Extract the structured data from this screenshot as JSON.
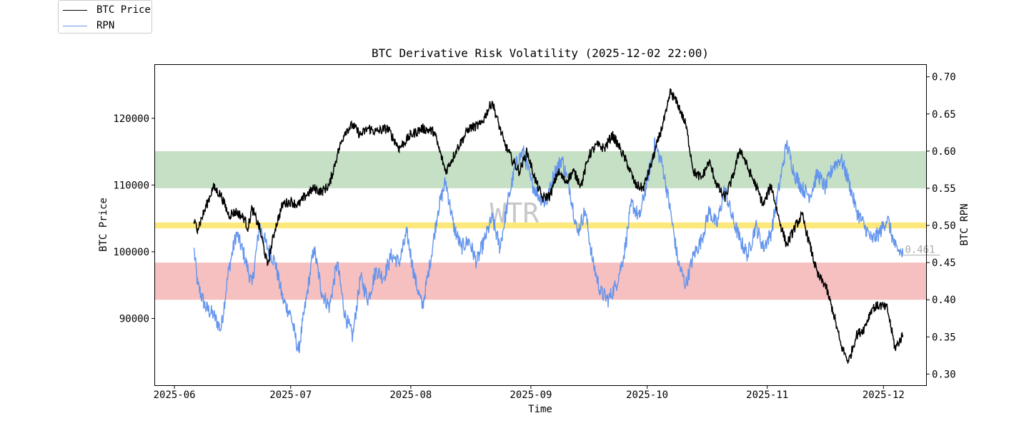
{
  "colors": {
    "btc_line": "#000000",
    "rpn_line": "#6495ed",
    "green_band": "#c6e0c6",
    "yellow_band": "#fde97b",
    "red_band": "#f6bfc0",
    "watermark": "#c8c8c8",
    "last_value": "#aaaaaa"
  },
  "chart_data": {
    "type": "line",
    "title": "BTC Derivative Risk Volatility (2025-12-02 22:00)",
    "xlabel": "Time",
    "ylabel_left": "BTC Price",
    "ylabel_right": "BTC RPN",
    "watermark": "WTR",
    "x_ticks": [
      "2025-06",
      "2025-07",
      "2025-08",
      "2025-09",
      "2025-10",
      "2025-11",
      "2025-12"
    ],
    "y_left_ticks": [
      "90000",
      "100000",
      "110000",
      "120000"
    ],
    "y_right_ticks": [
      "0.30",
      "0.35",
      "0.40",
      "0.45",
      "0.50",
      "0.55",
      "0.60",
      "0.65",
      "0.70"
    ],
    "y_left_range": [
      80000,
      128000
    ],
    "y_right_range": [
      0.285,
      0.716
    ],
    "x_range_days": [
      -5,
      194
    ],
    "bands": [
      {
        "name": "green-band",
        "from": 0.55,
        "to": 0.6
      },
      {
        "name": "yellow-band",
        "from": 0.496,
        "to": 0.504
      },
      {
        "name": "red-band",
        "from": 0.4,
        "to": 0.45
      }
    ],
    "last_rpn_label": "0.461",
    "legend": [
      {
        "label": "BTC Price",
        "series": "btc"
      },
      {
        "label": "RPN",
        "series": "rpn"
      }
    ],
    "series": [
      {
        "name": "BTC Price",
        "key": "btc",
        "axis": "left",
        "days": [
          5,
          6,
          8,
          10,
          12,
          14,
          16,
          18,
          19,
          20,
          22,
          24,
          26,
          28,
          30,
          32,
          34,
          36,
          38,
          40,
          42,
          44,
          46,
          48,
          50,
          52,
          55,
          58,
          61,
          64,
          67,
          70,
          73,
          76,
          79,
          82,
          85,
          87,
          89,
          91,
          93,
          95,
          97,
          99,
          101,
          103,
          105,
          107,
          109,
          111,
          113,
          115,
          117,
          119,
          121,
          123,
          125,
          127,
          128,
          130,
          132,
          134,
          136,
          138,
          140,
          142,
          144,
          146,
          148,
          150,
          152,
          154,
          156,
          158,
          160,
          162,
          164,
          166,
          168,
          170,
          172,
          174,
          176,
          178,
          180,
          182,
          184,
          186,
          188
        ],
        "values": [
          104500,
          103500,
          106500,
          109700,
          108500,
          105500,
          106000,
          105000,
          103500,
          106500,
          103500,
          98000,
          103500,
          107200,
          107500,
          107000,
          108500,
          109500,
          109000,
          110000,
          114500,
          118000,
          119000,
          117500,
          118500,
          118000,
          118500,
          115500,
          117500,
          118500,
          118000,
          112000,
          115500,
          118500,
          119000,
          122500,
          116500,
          114000,
          112000,
          115000,
          111000,
          108000,
          108500,
          112000,
          110500,
          112000,
          110000,
          114500,
          116000,
          115500,
          117500,
          115500,
          113000,
          110000,
          109500,
          113000,
          117000,
          121000,
          124000,
          122000,
          119000,
          112000,
          111000,
          113500,
          110000,
          108000,
          111000,
          115500,
          112500,
          110000,
          107000,
          110000,
          105000,
          101000,
          103500,
          105500,
          101000,
          96500,
          95000,
          91000,
          86000,
          83500,
          87500,
          88500,
          91500,
          92000,
          91500,
          85500,
          87500
        ]
      },
      {
        "name": "RPN",
        "key": "rpn",
        "axis": "right",
        "days": [
          5,
          6,
          8,
          10,
          12,
          14,
          16,
          18,
          20,
          22,
          24,
          26,
          28,
          30,
          32,
          34,
          36,
          38,
          40,
          42,
          44,
          46,
          48,
          50,
          52,
          54,
          56,
          58,
          60,
          62,
          64,
          66,
          68,
          70,
          72,
          74,
          76,
          78,
          80,
          82,
          84,
          86,
          88,
          90,
          92,
          94,
          96,
          98,
          100,
          102,
          104,
          106,
          108,
          110,
          112,
          114,
          116,
          118,
          120,
          122,
          124,
          126,
          128,
          130,
          132,
          134,
          136,
          138,
          140,
          142,
          144,
          146,
          148,
          150,
          152,
          154,
          156,
          158,
          160,
          162,
          164,
          166,
          168,
          170,
          172,
          174,
          176,
          178,
          180,
          182,
          184,
          186,
          188
        ],
        "values": [
          0.47,
          0.42,
          0.39,
          0.38,
          0.36,
          0.44,
          0.49,
          0.46,
          0.42,
          0.5,
          0.47,
          0.45,
          0.4,
          0.38,
          0.33,
          0.4,
          0.47,
          0.41,
          0.39,
          0.45,
          0.38,
          0.35,
          0.43,
          0.4,
          0.44,
          0.43,
          0.46,
          0.45,
          0.49,
          0.43,
          0.39,
          0.45,
          0.52,
          0.56,
          0.5,
          0.47,
          0.48,
          0.45,
          0.48,
          0.51,
          0.47,
          0.53,
          0.58,
          0.6,
          0.56,
          0.54,
          0.53,
          0.57,
          0.59,
          0.55,
          0.49,
          0.52,
          0.45,
          0.41,
          0.4,
          0.42,
          0.46,
          0.53,
          0.51,
          0.56,
          0.61,
          0.58,
          0.52,
          0.45,
          0.42,
          0.46,
          0.48,
          0.52,
          0.5,
          0.55,
          0.51,
          0.48,
          0.46,
          0.5,
          0.47,
          0.49,
          0.55,
          0.61,
          0.57,
          0.55,
          0.54,
          0.57,
          0.55,
          0.58,
          0.59,
          0.56,
          0.52,
          0.5,
          0.48,
          0.49,
          0.51,
          0.47,
          0.461
        ]
      }
    ]
  }
}
